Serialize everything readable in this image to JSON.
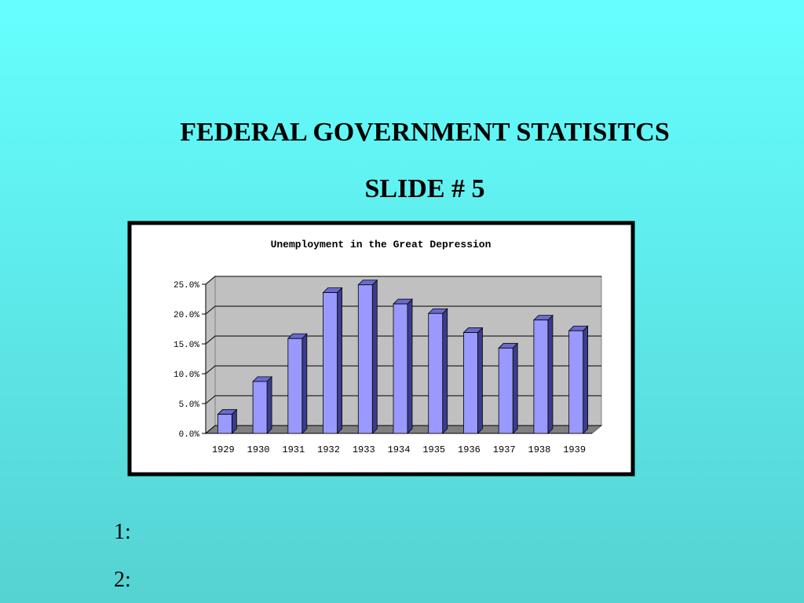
{
  "slide": {
    "title": "FEDERAL GOVERNMENT STATISITCS",
    "subtitle": "SLIDE # 5",
    "items": [
      "1:",
      "2:"
    ]
  },
  "chart_data": {
    "type": "bar3d",
    "title": "Unemployment in the Great Depression",
    "categories": [
      "1929",
      "1930",
      "1931",
      "1932",
      "1933",
      "1934",
      "1935",
      "1936",
      "1937",
      "1938",
      "1939"
    ],
    "values": [
      3.2,
      8.7,
      15.9,
      23.6,
      24.9,
      21.7,
      20.1,
      16.9,
      14.3,
      19.0,
      17.2
    ],
    "color": "#9999ff",
    "ylim": [
      0,
      25
    ],
    "yticks": [
      {
        "value": 0,
        "label": "0.0%"
      },
      {
        "value": 5,
        "label": "5.0%"
      },
      {
        "value": 10,
        "label": "10.0%"
      },
      {
        "value": 15,
        "label": "15.0%"
      },
      {
        "value": 20,
        "label": "20.0%"
      },
      {
        "value": 25,
        "label": "25.0%"
      }
    ],
    "grid": true
  }
}
